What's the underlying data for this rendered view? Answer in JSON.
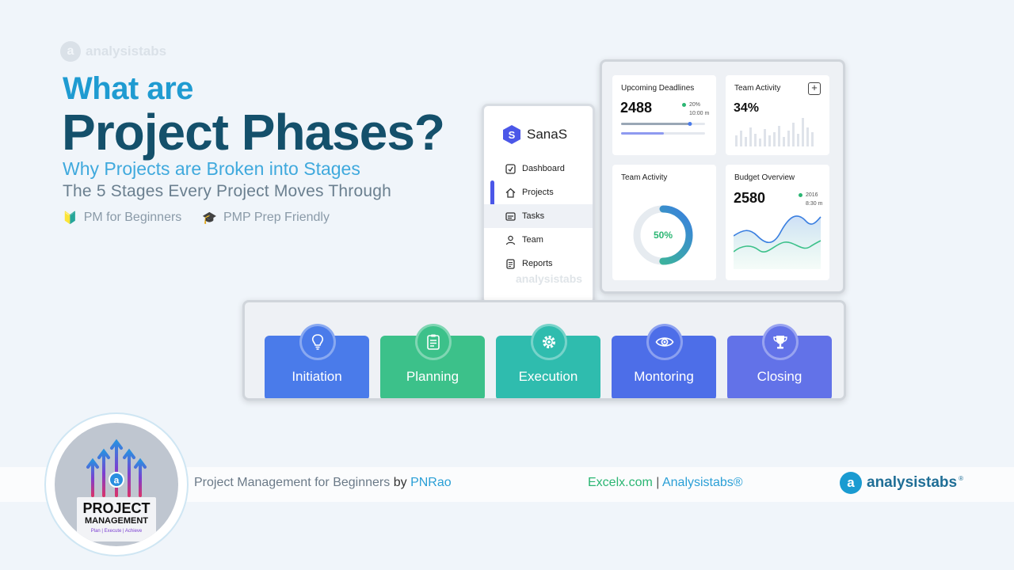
{
  "watermark": {
    "logo_letter": "a",
    "text": "analysistabs"
  },
  "hero": {
    "small_title": "What are",
    "big_title": "Project Phases?",
    "subtitle1": "Why Projects are Broken into Stages",
    "subtitle2": "The 5 Stages Every Project Moves Through",
    "tags": [
      {
        "icon": "beginner-badge-icon",
        "label": "PM for Beginners"
      },
      {
        "icon": "graduation-cap-icon",
        "label": "PMP Prep Friendly"
      }
    ]
  },
  "sidebar": {
    "brand_letter": "S",
    "brand_name": "SanaS",
    "items": [
      {
        "label": "Dashboard",
        "icon": "dashboard-icon"
      },
      {
        "label": "Projects",
        "icon": "home-icon"
      },
      {
        "label": "Tasks",
        "icon": "tasks-icon",
        "active": true
      },
      {
        "label": "Team",
        "icon": "user-icon"
      },
      {
        "label": "Reports",
        "icon": "reports-icon"
      }
    ],
    "watermark": "analysistabs"
  },
  "dashboard": {
    "upcoming": {
      "title": "Upcoming Deadlines",
      "value": "2488",
      "stat1": "20%",
      "stat2": "10:00 m",
      "progress": 0.82
    },
    "team_activity_top": {
      "title": "Team Activity",
      "value": "34%"
    },
    "team_activity_ring": {
      "title": "Team Activity",
      "value": "50%",
      "fraction": 0.5
    },
    "budget": {
      "title": "Budget Overview",
      "value": "2580",
      "stat1": "2016",
      "stat2": "8:30 m"
    }
  },
  "phases": [
    {
      "label": "Initiation",
      "icon": "lightbulb-icon",
      "color": "#4a7bea"
    },
    {
      "label": "Planning",
      "icon": "clipboard-icon",
      "color": "#3cc18a"
    },
    {
      "label": "Execution",
      "icon": "gear-icon",
      "color": "#2fbcae"
    },
    {
      "label": "Montoring",
      "icon": "eye-icon",
      "color": "#4d6ee8"
    },
    {
      "label": "Closing",
      "icon": "trophy-icon",
      "color": "#6272e8"
    }
  ],
  "footer": {
    "course": "Project Management for Beginners",
    "by": "by",
    "author": "PNRao",
    "site1": "Excelx.com",
    "separator": "|",
    "site2": "Analysistabs®",
    "brand_letter": "a",
    "brand": "analysistabs",
    "reg": "®"
  },
  "badge": {
    "title": "PROJECT",
    "subtitle": "MANAGEMENT",
    "tagline": "Plan | Execute | Achieve"
  },
  "colors": {
    "accent": "#1f9bd1",
    "dark": "#14506b",
    "green": "#2bb673"
  }
}
